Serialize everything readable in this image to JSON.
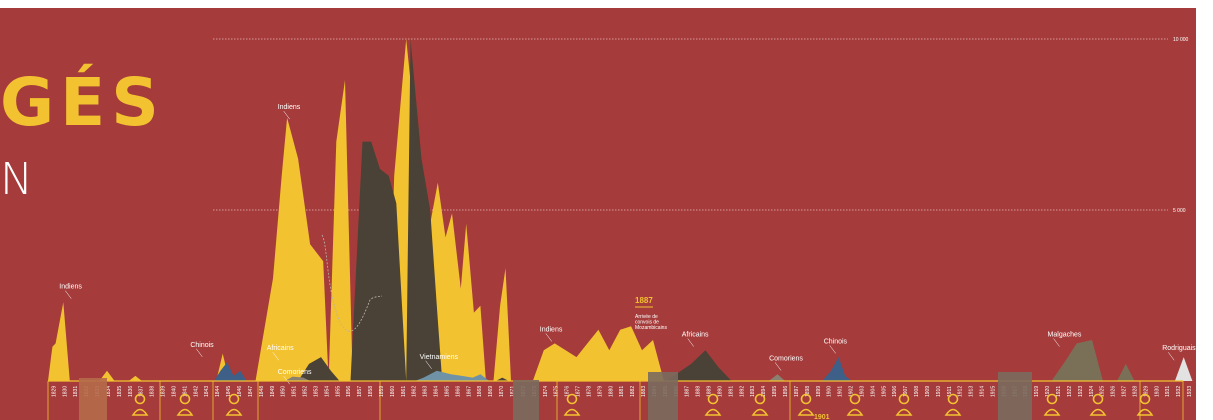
{
  "header": {
    "title": "GÉS",
    "subtitle": "N"
  },
  "colors": {
    "background": "#a53c3b",
    "indiens": "#f3c230",
    "africains": "#4a4236",
    "chinois": "#3e5f88",
    "vietnamiens": "#6f92a6",
    "malgaches": "#7a7057",
    "rodriguais": "#e2e2e2",
    "accent": "#f3c230"
  },
  "annotation": {
    "year": "1887",
    "text": [
      "Arrivée de",
      "convois de",
      "Mozambicains"
    ]
  },
  "portrait_icon": "person-bust-icon",
  "chart_data": {
    "type": "area",
    "title": "",
    "xlabel": "",
    "ylabel": "",
    "ylim": [
      0,
      10000
    ],
    "gridlines": [
      {
        "value": 10000,
        "label": "10 000"
      },
      {
        "value": 5000,
        "label": "5 000"
      }
    ],
    "years": [
      "1829",
      "1830",
      "1831",
      "1832",
      "1833",
      "1834",
      "1835",
      "1836",
      "1837",
      "1838",
      "1839",
      "1840",
      "1841",
      "1842",
      "1843",
      "1844",
      "1845",
      "1846",
      "1847",
      "1848",
      "1849",
      "1850",
      "1851",
      "1852",
      "1853",
      "1854",
      "1855",
      "1856",
      "1857",
      "1858",
      "1859",
      "1860",
      "1861",
      "1862",
      "1863",
      "1864",
      "1865",
      "1866",
      "1867",
      "1868",
      "1869",
      "1870",
      "1871",
      "1872",
      "1873",
      "1874",
      "1875",
      "1876",
      "1877",
      "1878",
      "1879",
      "1880",
      "1881",
      "1882",
      "1883",
      "1884",
      "1885",
      "1886",
      "1887",
      "1888",
      "1889",
      "1890",
      "1891",
      "1892",
      "1893",
      "1894",
      "1895",
      "1896",
      "1897",
      "1898",
      "1899",
      "1900",
      "1901",
      "1902",
      "1903",
      "1904",
      "1905",
      "1906",
      "1907",
      "1908",
      "1909",
      "1910",
      "1911",
      "1912",
      "1913",
      "1914",
      "1915",
      "1916",
      "1917",
      "1918",
      "1919",
      "1920",
      "1921",
      "1922",
      "1923",
      "1924",
      "1925",
      "1926",
      "1927",
      "1928",
      "1929",
      "1930",
      "1931",
      "1932",
      "1933",
      "1934",
      "1935",
      "1936",
      "1937"
    ],
    "series": [
      {
        "name": "Indiens",
        "color": "#f3c230",
        "points": [
          [
            1828.6,
            0
          ],
          [
            1829,
            1000
          ],
          [
            1829.3,
            1100
          ],
          [
            1830,
            2300
          ],
          [
            1830.6,
            0
          ],
          [
            1833.3,
            0
          ],
          [
            1834,
            300
          ],
          [
            1834.7,
            0
          ],
          [
            1836,
            0
          ],
          [
            1836.6,
            150
          ],
          [
            1837.2,
            0
          ],
          [
            1844,
            0
          ],
          [
            1844.6,
            800
          ],
          [
            1845.2,
            0
          ],
          [
            1847.6,
            0
          ],
          [
            1849.2,
            3000
          ],
          [
            1850,
            6000
          ],
          [
            1850.5,
            7700
          ],
          [
            1851.5,
            6500
          ],
          [
            1852.6,
            4000
          ],
          [
            1853.8,
            3500
          ],
          [
            1854.3,
            0
          ],
          [
            1855,
            7000
          ],
          [
            1855.8,
            8800
          ],
          [
            1856.5,
            0
          ],
          [
            1859.7,
            0
          ],
          [
            1860.3,
            6000
          ],
          [
            1861.4,
            10000
          ],
          [
            1862.2,
            7500
          ],
          [
            1863,
            5500
          ],
          [
            1863.6,
            4600
          ],
          [
            1864.3,
            5800
          ],
          [
            1865,
            4200
          ],
          [
            1865.6,
            4900
          ],
          [
            1866.4,
            2700
          ],
          [
            1866.9,
            4600
          ],
          [
            1867.6,
            2000
          ],
          [
            1868.2,
            2200
          ],
          [
            1868.7,
            0
          ],
          [
            1869.4,
            0
          ],
          [
            1870,
            2200
          ],
          [
            1870.5,
            3300
          ],
          [
            1871,
            0
          ],
          [
            1873,
            0
          ],
          [
            1874,
            900
          ],
          [
            1875,
            1100
          ],
          [
            1876,
            900
          ],
          [
            1877,
            700
          ],
          [
            1878,
            1100
          ],
          [
            1879,
            1500
          ],
          [
            1880,
            900
          ],
          [
            1881,
            1500
          ],
          [
            1882,
            1600
          ],
          [
            1883,
            900
          ],
          [
            1884,
            1200
          ],
          [
            1885,
            0
          ]
        ]
      },
      {
        "name": "Africains",
        "color": "#4a4236",
        "points": [
          [
            1851.5,
            0
          ],
          [
            1852.5,
            500
          ],
          [
            1853.6,
            700
          ],
          [
            1854.5,
            300
          ],
          [
            1855.3,
            0
          ],
          [
            1856.3,
            0
          ],
          [
            1857.4,
            7000
          ],
          [
            1858.2,
            7000
          ],
          [
            1859,
            6200
          ],
          [
            1859.8,
            6000
          ],
          [
            1860.5,
            5200
          ],
          [
            1861.4,
            0
          ],
          [
            1861.8,
            10000
          ],
          [
            1862.8,
            6500
          ],
          [
            1863.6,
            5000
          ],
          [
            1864.2,
            2200
          ],
          [
            1864.7,
            0
          ],
          [
            1865.2,
            0
          ],
          [
            1867.3,
            0
          ],
          [
            1867.9,
            0
          ],
          [
            1868.5,
            0
          ],
          [
            1869.3,
            0
          ],
          [
            1869.6,
            0
          ],
          [
            1870.2,
            100
          ],
          [
            1870.8,
            0
          ],
          [
            1885.2,
            0
          ],
          [
            1887.5,
            500
          ],
          [
            1888.8,
            900
          ],
          [
            1890,
            400
          ],
          [
            1891.2,
            0
          ]
        ]
      },
      {
        "name": "Chinois",
        "color": "#3e5f88",
        "points": [
          [
            1843.8,
            0
          ],
          [
            1844.4,
            300
          ],
          [
            1845,
            550
          ],
          [
            1845.6,
            150
          ],
          [
            1846.2,
            300
          ],
          [
            1846.8,
            0
          ],
          [
            1899.5,
            0
          ],
          [
            1900.3,
            300
          ],
          [
            1901,
            700
          ],
          [
            1901.6,
            150
          ],
          [
            1902.2,
            0
          ]
        ]
      },
      {
        "name": "Comoriens",
        "color": "#8a8071",
        "points": [
          [
            1850.3,
            0
          ],
          [
            1851,
            130
          ],
          [
            1852,
            100
          ],
          [
            1852.6,
            0
          ],
          [
            1894.6,
            0
          ],
          [
            1895.4,
            200
          ],
          [
            1896.1,
            0
          ]
        ]
      },
      {
        "name": "Vietnamiens",
        "color": "#6f92a6",
        "points": [
          [
            1862.2,
            0
          ],
          [
            1863,
            100
          ],
          [
            1864.2,
            300
          ],
          [
            1865.5,
            200
          ],
          [
            1866.5,
            150
          ],
          [
            1867.5,
            100
          ],
          [
            1868.2,
            200
          ],
          [
            1869,
            0
          ]
        ]
      },
      {
        "name": "Malgaches",
        "color": "#7a7057",
        "points": [
          [
            1920.5,
            0
          ],
          [
            1921.8,
            600
          ],
          [
            1922.8,
            1100
          ],
          [
            1924.2,
            1200
          ],
          [
            1925.2,
            0
          ],
          [
            1926.5,
            0
          ],
          [
            1927.3,
            500
          ],
          [
            1928.1,
            0
          ]
        ]
      },
      {
        "name": "Rodriguais",
        "color": "#e2e2e2",
        "points": [
          [
            1931.8,
            0
          ],
          [
            1932.6,
            700
          ],
          [
            1933.4,
            0
          ]
        ]
      }
    ],
    "labels": [
      {
        "text": "Indiens",
        "year": 1830,
        "value": 2700
      },
      {
        "text": "Chinois",
        "year": 1842,
        "value": 1000
      },
      {
        "text": "Indiens",
        "year": 1850,
        "value": 7950
      },
      {
        "text": "Africains",
        "year": 1849,
        "value": 900
      },
      {
        "text": "Comoriens",
        "year": 1850,
        "value": 200
      },
      {
        "text": "Vietnamiens",
        "year": 1863,
        "value": 650
      },
      {
        "text": "Indiens",
        "year": 1874,
        "value": 1450
      },
      {
        "text": "Africains",
        "year": 1887,
        "value": 1300
      },
      {
        "text": "Comoriens",
        "year": 1895,
        "value": 600
      },
      {
        "text": "Chinois",
        "year": 1900,
        "value": 1100
      },
      {
        "text": "Malgaches",
        "year": 1920.5,
        "value": 1300
      },
      {
        "text": "Rodriguais",
        "year": 1931,
        "value": 900
      }
    ],
    "highlight_year": "1901"
  }
}
